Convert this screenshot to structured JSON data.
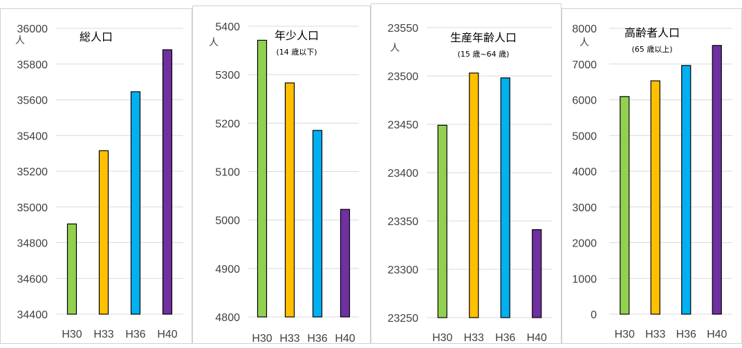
{
  "colors": [
    "#92d050",
    "#ffc000",
    "#00b0f0",
    "#7030a0"
  ],
  "chart_data": [
    {
      "type": "bar",
      "title": "総人口",
      "subtitle": "",
      "unit": "人",
      "categories": [
        "H30",
        "H33",
        "H36",
        "H40"
      ],
      "values": [
        34905,
        35315,
        35645,
        35880
      ],
      "ylim": [
        34400,
        36000
      ],
      "yticks": [
        34400,
        34600,
        34800,
        35000,
        35200,
        35400,
        35600,
        35800,
        36000
      ],
      "grid": true
    },
    {
      "type": "bar",
      "title": "年少人口",
      "subtitle": "(14 歳以下)",
      "unit": "人",
      "categories": [
        "H30",
        "H33",
        "H36",
        "H40"
      ],
      "values": [
        5371,
        5283,
        5185,
        5022
      ],
      "ylim": [
        4800,
        5400
      ],
      "yticks": [
        4800,
        4900,
        5000,
        5100,
        5200,
        5300,
        5400
      ],
      "grid": true
    },
    {
      "type": "bar",
      "title": "生産年齢人口",
      "subtitle": "(15 歳~64 歳)",
      "unit": "人",
      "categories": [
        "H30",
        "H33",
        "H36",
        "H40"
      ],
      "values": [
        23449,
        23503,
        23498,
        23341
      ],
      "ylim": [
        23250,
        23550
      ],
      "yticks": [
        23250,
        23300,
        23350,
        23400,
        23450,
        23500,
        23550
      ],
      "grid": true
    },
    {
      "type": "bar",
      "title": "高齢者人口",
      "subtitle": "(65 歳以上)",
      "unit": "人",
      "categories": [
        "H30",
        "H33",
        "H36",
        "H40"
      ],
      "values": [
        6090,
        6530,
        6960,
        7520
      ],
      "ylim": [
        0,
        8000
      ],
      "yticks": [
        0,
        1000,
        2000,
        3000,
        4000,
        5000,
        6000,
        7000,
        8000
      ],
      "grid": true
    }
  ]
}
